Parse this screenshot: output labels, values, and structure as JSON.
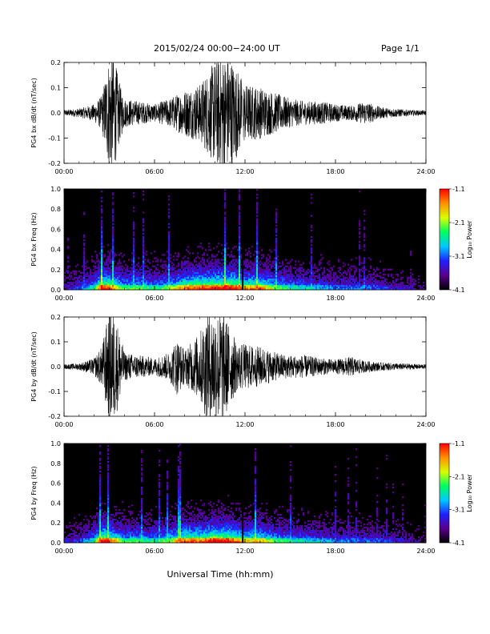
{
  "header": {
    "title": "2015/02/24  00:00−24:00 UT",
    "page": "Page 1/1"
  },
  "xlabel": "Universal Time (hh:mm)",
  "colorbar": {
    "label": "Log₁₀ Power",
    "ticks": [
      "-1.1",
      "-2.1",
      "-3.1",
      "-4.1"
    ],
    "range": [
      -4.1,
      -1.1
    ],
    "colors": [
      "#000000",
      "#5a008c",
      "#2020ff",
      "#00c8ff",
      "#00ff60",
      "#d8ff00",
      "#ff9000",
      "#ff0000"
    ]
  },
  "chart_data": [
    {
      "type": "line",
      "ylabel": "PG4 bx dB/dt (nT/sec)",
      "xlim": [
        0,
        24
      ],
      "ylim": [
        -0.2,
        0.2
      ],
      "x_ticks": [
        "00:00",
        "06:00",
        "12:00",
        "18:00",
        "24:00"
      ],
      "y_ticks": [
        "0.2",
        "0.1",
        "0.0",
        "-0.1",
        "-0.2"
      ],
      "envelope": {
        "hours": [
          0,
          1,
          2,
          2.5,
          3,
          3.3,
          3.7,
          4,
          5,
          6,
          7,
          8,
          9,
          9.5,
          10,
          10.5,
          11,
          11.5,
          12,
          13,
          14,
          15,
          16,
          17,
          18,
          19,
          20,
          21,
          22,
          23,
          24
        ],
        "amplitude": [
          0.01,
          0.015,
          0.03,
          0.06,
          0.2,
          0.2,
          0.1,
          0.05,
          0.04,
          0.03,
          0.05,
          0.08,
          0.1,
          0.14,
          0.18,
          0.2,
          0.2,
          0.15,
          0.1,
          0.09,
          0.07,
          0.05,
          0.04,
          0.04,
          0.03,
          0.025,
          0.04,
          0.02,
          0.015,
          0.01,
          0.008
        ]
      }
    },
    {
      "type": "heatmap",
      "ylabel": "PG4 bx Freq (Hz)",
      "xlim": [
        0,
        24
      ],
      "ylim": [
        0,
        1.0
      ],
      "x_ticks": [
        "00:00",
        "06:00",
        "12:00",
        "18:00",
        "24:00"
      ],
      "y_ticks": [
        "1.0",
        "0.8",
        "0.6",
        "0.4",
        "0.2",
        "0.0"
      ],
      "activity": {
        "hours": [
          0,
          1,
          2,
          2.5,
          3,
          4,
          5,
          6,
          7,
          8,
          9,
          10,
          11,
          12,
          13,
          14,
          15,
          16,
          17,
          18,
          19,
          20,
          21,
          22,
          23,
          24
        ],
        "level": [
          0.15,
          0.25,
          0.45,
          0.85,
          0.8,
          0.5,
          0.55,
          0.45,
          0.55,
          0.75,
          0.8,
          0.85,
          0.9,
          0.7,
          0.75,
          0.55,
          0.45,
          0.4,
          0.35,
          0.3,
          0.3,
          0.3,
          0.25,
          0.2,
          0.15,
          0.1
        ]
      }
    },
    {
      "type": "line",
      "ylabel": "PG4 by dB/dt (nT/sec)",
      "xlim": [
        0,
        24
      ],
      "ylim": [
        -0.2,
        0.2
      ],
      "x_ticks": [
        "00:00",
        "06:00",
        "12:00",
        "18:00",
        "24:00"
      ],
      "y_ticks": [
        "0.2",
        "0.1",
        "0.0",
        "-0.1",
        "-0.2"
      ],
      "envelope": {
        "hours": [
          0,
          1,
          2,
          2.5,
          3,
          3.3,
          3.7,
          4,
          5,
          6,
          7,
          7.5,
          8,
          9,
          9.5,
          10,
          10.5,
          11,
          11.5,
          12,
          13,
          14,
          15,
          16,
          17,
          18,
          19,
          20,
          21,
          22,
          23,
          24
        ],
        "amplitude": [
          0.008,
          0.012,
          0.03,
          0.07,
          0.2,
          0.2,
          0.12,
          0.05,
          0.04,
          0.03,
          0.05,
          0.1,
          0.06,
          0.12,
          0.2,
          0.2,
          0.2,
          0.14,
          0.08,
          0.08,
          0.07,
          0.05,
          0.04,
          0.04,
          0.03,
          0.025,
          0.035,
          0.02,
          0.015,
          0.012,
          0.01,
          0.008
        ]
      }
    },
    {
      "type": "heatmap",
      "ylabel": "PG4 by Freq (Hz)",
      "xlim": [
        0,
        24
      ],
      "ylim": [
        0,
        1.0
      ],
      "x_ticks": [
        "00:00",
        "06:00",
        "12:00",
        "18:00",
        "24:00"
      ],
      "y_ticks": [
        "1.0",
        "0.8",
        "0.6",
        "0.4",
        "0.2",
        "0.0"
      ],
      "activity": {
        "hours": [
          0,
          1,
          2,
          2.5,
          3,
          4,
          5,
          6,
          7,
          8,
          9,
          10,
          11,
          12,
          13,
          14,
          15,
          16,
          17,
          18,
          19,
          20,
          21,
          22,
          23,
          24
        ],
        "level": [
          0.15,
          0.25,
          0.45,
          0.85,
          0.8,
          0.5,
          0.5,
          0.45,
          0.55,
          0.8,
          0.75,
          0.9,
          0.85,
          0.65,
          0.7,
          0.5,
          0.45,
          0.4,
          0.35,
          0.3,
          0.3,
          0.28,
          0.25,
          0.2,
          0.15,
          0.1
        ]
      }
    }
  ]
}
